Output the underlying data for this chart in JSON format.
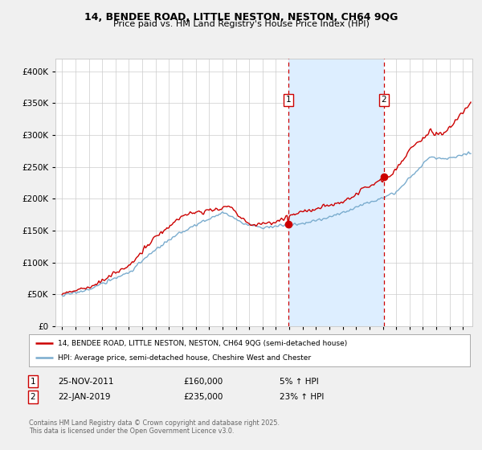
{
  "title": "14, BENDEE ROAD, LITTLE NESTON, NESTON, CH64 9QG",
  "subtitle": "Price paid vs. HM Land Registry's House Price Index (HPI)",
  "legend_line1": "14, BENDEE ROAD, LITTLE NESTON, NESTON, CH64 9QG (semi-detached house)",
  "legend_line2": "HPI: Average price, semi-detached house, Cheshire West and Chester",
  "transaction1_date": "25-NOV-2011",
  "transaction1_price": "£160,000",
  "transaction1_hpi": "5% ↑ HPI",
  "transaction1_year": 2011.92,
  "transaction2_date": "22-JAN-2019",
  "transaction2_price": "£235,000",
  "transaction2_hpi": "23% ↑ HPI",
  "transaction2_year": 2019.07,
  "footer": "Contains HM Land Registry data © Crown copyright and database right 2025.\nThis data is licensed under the Open Government Licence v3.0.",
  "red_color": "#cc0000",
  "blue_color": "#7aacce",
  "shade_color": "#ddeeff",
  "background_color": "#f0f0f0",
  "plot_bg_color": "#ffffff",
  "ylim": [
    0,
    420000
  ],
  "xlim_start": 1994.5,
  "xlim_end": 2025.7,
  "yticks": [
    0,
    50000,
    100000,
    150000,
    200000,
    250000,
    300000,
    350000,
    400000
  ]
}
